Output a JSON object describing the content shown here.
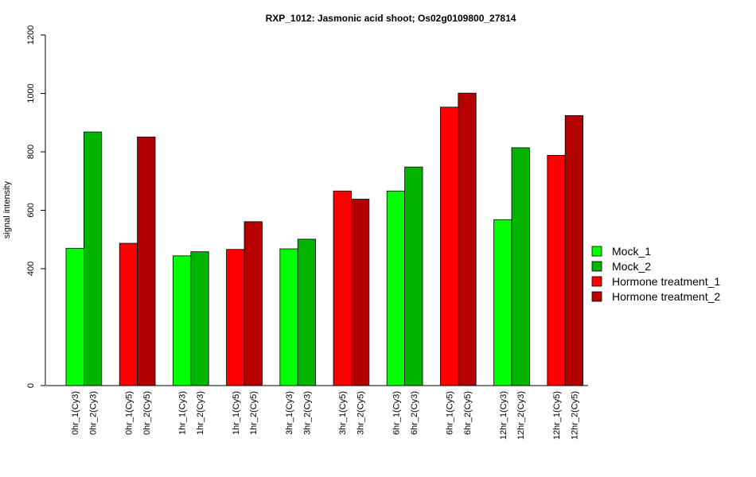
{
  "chart_data": {
    "type": "bar",
    "title": "RXP_1012: Jasmonic acid shoot; Os02g0109800_27814",
    "xlabel": "",
    "ylabel": "signal intensity",
    "ylim": [
      0,
      1200
    ],
    "yticks": [
      0,
      400,
      600,
      800,
      1000,
      1200
    ],
    "grid": false,
    "legend_position": "right",
    "legend": [
      {
        "name": "Mock_1",
        "color": "#00ff00"
      },
      {
        "name": "Mock_2",
        "color": "#00b400"
      },
      {
        "name": "Hormone treatment_1",
        "color": "#ff0000"
      },
      {
        "name": "Hormone treatment_2",
        "color": "#b40000"
      }
    ],
    "bars": [
      {
        "label": "0hr_1(Cy3)",
        "value": 470,
        "series": "Mock_1",
        "color": "#00ff00"
      },
      {
        "label": "0hr_2(Cy3)",
        "value": 868,
        "series": "Mock_2",
        "color": "#00b400"
      },
      {
        "label": "0hr_1(Cy5)",
        "value": 487,
        "series": "Hormone treatment_1",
        "color": "#ff0000"
      },
      {
        "label": "0hr_2(Cy5)",
        "value": 851,
        "series": "Hormone treatment_2",
        "color": "#b40000"
      },
      {
        "label": "1hr_1(Cy3)",
        "value": 444,
        "series": "Mock_1",
        "color": "#00ff00"
      },
      {
        "label": "1hr_2(Cy3)",
        "value": 458,
        "series": "Mock_2",
        "color": "#00b400"
      },
      {
        "label": "1hr_1(Cy5)",
        "value": 466,
        "series": "Hormone treatment_1",
        "color": "#ff0000"
      },
      {
        "label": "1hr_2(Cy5)",
        "value": 561,
        "series": "Hormone treatment_2",
        "color": "#b40000"
      },
      {
        "label": "3hr_1(Cy3)",
        "value": 468,
        "series": "Mock_1",
        "color": "#00ff00"
      },
      {
        "label": "3hr_2(Cy3)",
        "value": 501,
        "series": "Mock_2",
        "color": "#00b400"
      },
      {
        "label": "3hr_1(Cy5)",
        "value": 666,
        "series": "Hormone treatment_1",
        "color": "#ff0000"
      },
      {
        "label": "3hr_2(Cy5)",
        "value": 638,
        "series": "Hormone treatment_2",
        "color": "#b40000"
      },
      {
        "label": "6hr_1(Cy3)",
        "value": 666,
        "series": "Mock_1",
        "color": "#00ff00"
      },
      {
        "label": "6hr_2(Cy3)",
        "value": 748,
        "series": "Mock_2",
        "color": "#00b400"
      },
      {
        "label": "6hr_1(Cy5)",
        "value": 953,
        "series": "Hormone treatment_1",
        "color": "#ff0000"
      },
      {
        "label": "6hr_2(Cy5)",
        "value": 1001,
        "series": "Hormone treatment_2",
        "color": "#b40000"
      },
      {
        "label": "12hr_1(Cy3)",
        "value": 568,
        "series": "Mock_1",
        "color": "#00ff00"
      },
      {
        "label": "12hr_2(Cy3)",
        "value": 814,
        "series": "Mock_2",
        "color": "#00b400"
      },
      {
        "label": "12hr_1(Cy5)",
        "value": 788,
        "series": "Hormone treatment_1",
        "color": "#ff0000"
      },
      {
        "label": "12hr_2(Cy5)",
        "value": 924,
        "series": "Hormone treatment_2",
        "color": "#b40000"
      }
    ]
  }
}
